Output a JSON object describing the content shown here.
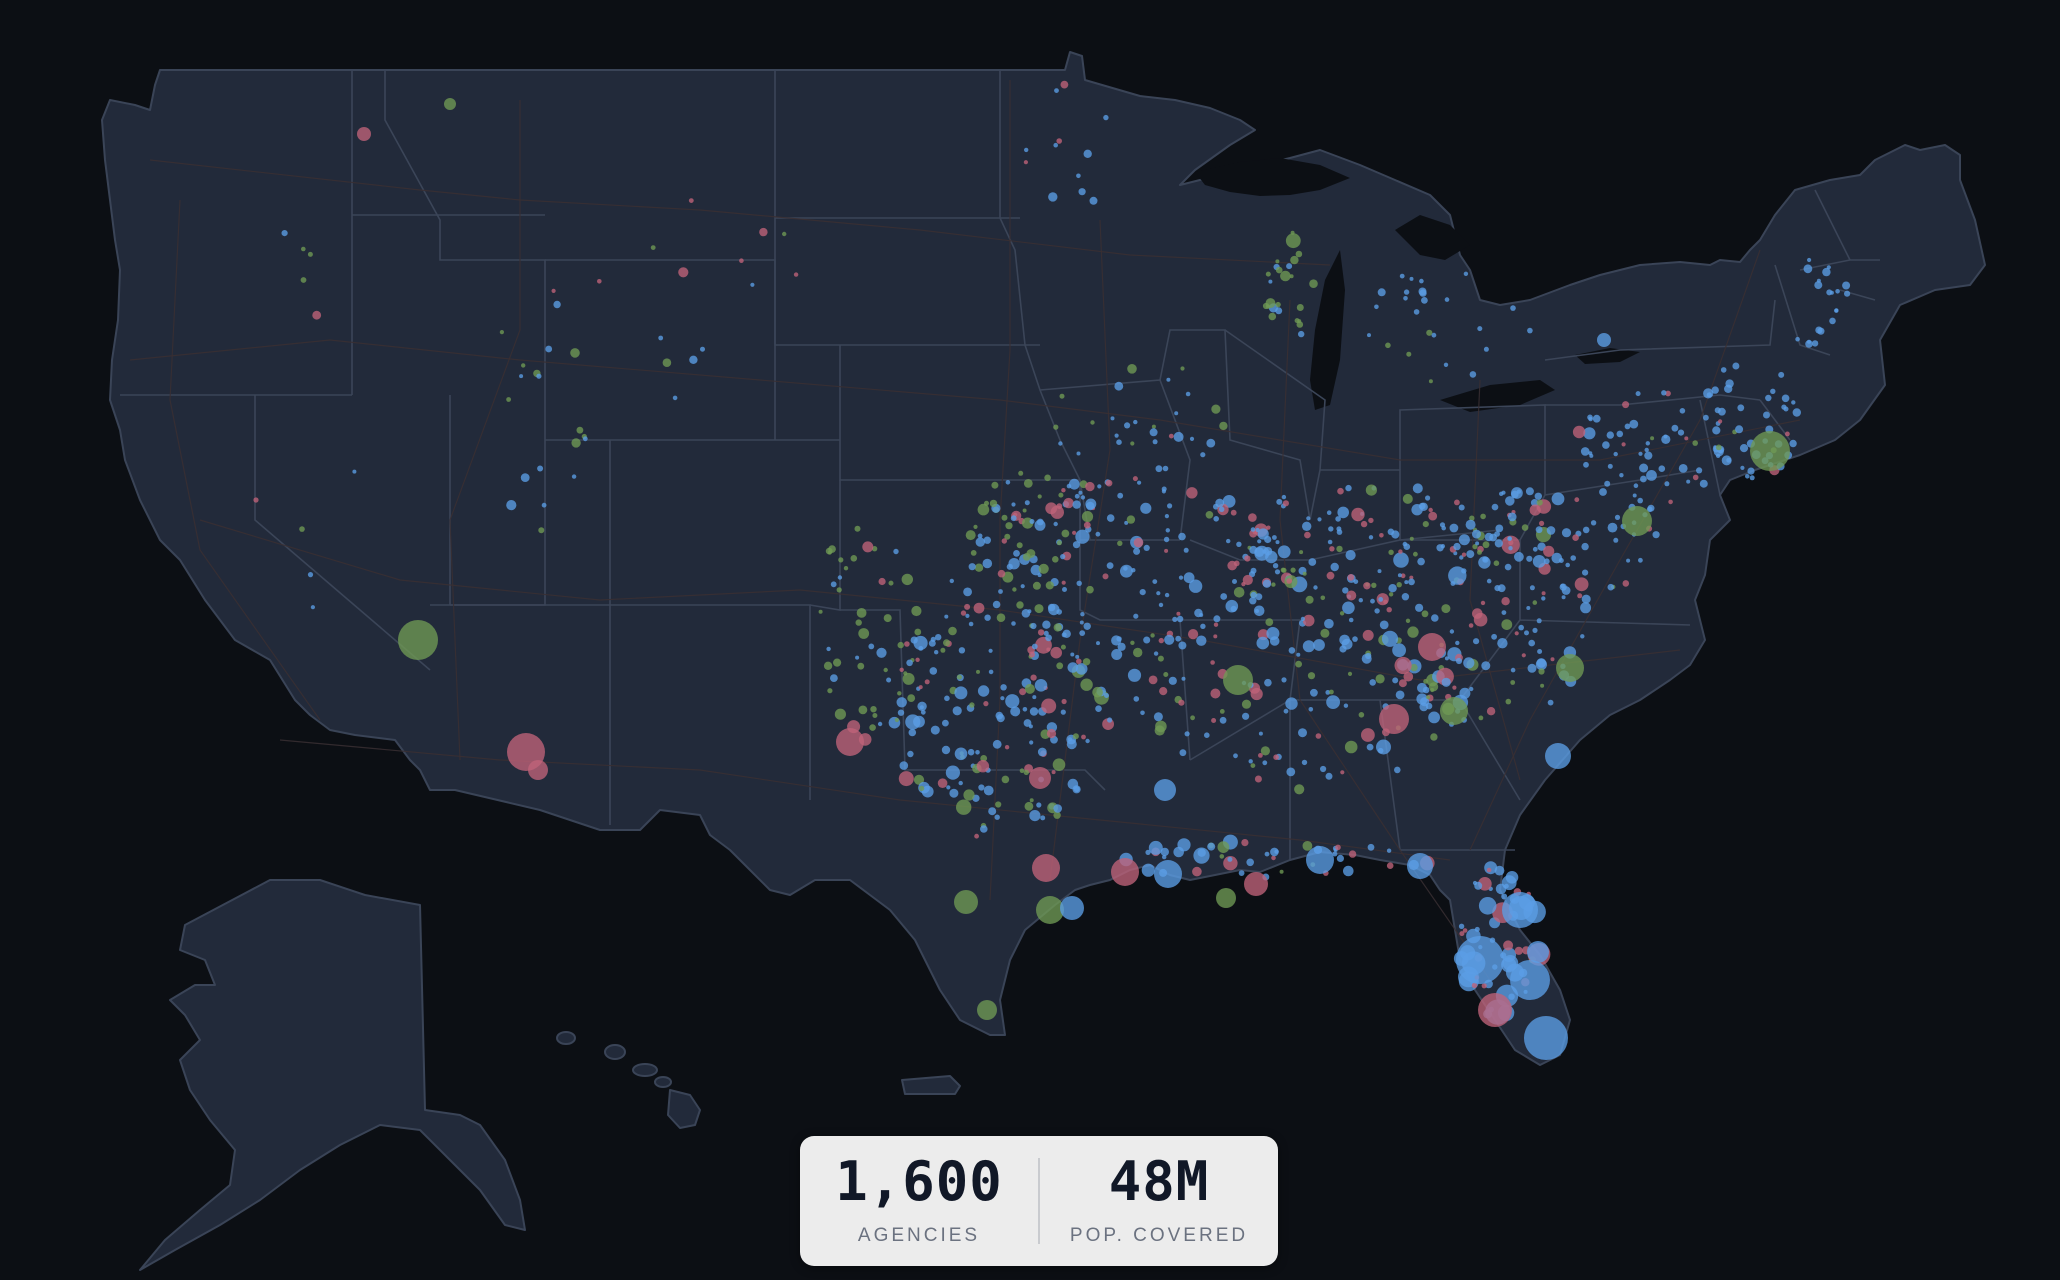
{
  "map": {
    "colors": {
      "background": "#0c0f14",
      "land": "#222a3a",
      "state_border": "#3b4558",
      "series_blue": "#5b9ee6",
      "series_green": "#6f9a55",
      "series_red": "#c0637a"
    },
    "series": [
      {
        "key": "blue",
        "color": "#5b9ee6"
      },
      {
        "key": "green",
        "color": "#6f9a55"
      },
      {
        "key": "red",
        "color": "#c0637a"
      }
    ]
  },
  "stats": {
    "agencies_value": "1,600",
    "agencies_label": "AGENCIES",
    "population_value": "48M",
    "population_label": "POP. COVERED"
  }
}
